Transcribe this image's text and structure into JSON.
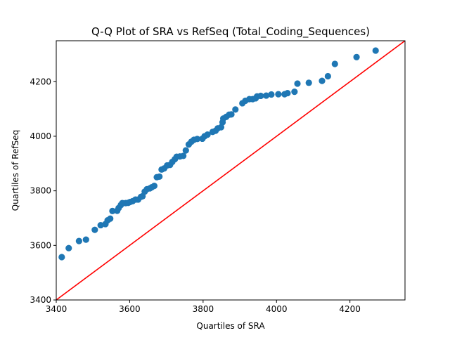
{
  "chart_data": {
    "type": "scatter",
    "title": "Q-Q Plot of SRA vs RefSeq (Total_Coding_Sequences)",
    "xlabel": "Quartiles of SRA",
    "ylabel": "Quartiles of RefSeq",
    "xlim": [
      3400,
      4350
    ],
    "ylim": [
      3400,
      4350
    ],
    "xticks": [
      3400,
      3600,
      3800,
      4000,
      4200
    ],
    "yticks": [
      3400,
      3600,
      3800,
      4000,
      4200
    ],
    "grid": false,
    "legend": "none",
    "series": [
      {
        "color": "#1f77b4",
        "points": [
          [
            3415,
            3557
          ],
          [
            3434,
            3590
          ],
          [
            3462,
            3616
          ],
          [
            3481,
            3621
          ],
          [
            3505,
            3657
          ],
          [
            3521,
            3674
          ],
          [
            3534,
            3678
          ],
          [
            3540,
            3692
          ],
          [
            3547,
            3698
          ],
          [
            3553,
            3726
          ],
          [
            3566,
            3727
          ],
          [
            3570,
            3737
          ],
          [
            3576,
            3748
          ],
          [
            3580,
            3755
          ],
          [
            3589,
            3755
          ],
          [
            3596,
            3756
          ],
          [
            3601,
            3759
          ],
          [
            3608,
            3762
          ],
          [
            3616,
            3768
          ],
          [
            3623,
            3768
          ],
          [
            3631,
            3778
          ],
          [
            3635,
            3780
          ],
          [
            3641,
            3797
          ],
          [
            3647,
            3806
          ],
          [
            3655,
            3809
          ],
          [
            3660,
            3813
          ],
          [
            3667,
            3818
          ],
          [
            3674,
            3850
          ],
          [
            3681,
            3852
          ],
          [
            3687,
            3878
          ],
          [
            3694,
            3882
          ],
          [
            3702,
            3893
          ],
          [
            3710,
            3895
          ],
          [
            3716,
            3906
          ],
          [
            3723,
            3916
          ],
          [
            3728,
            3925
          ],
          [
            3737,
            3926
          ],
          [
            3746,
            3928
          ],
          [
            3753,
            3948
          ],
          [
            3761,
            3970
          ],
          [
            3768,
            3980
          ],
          [
            3775,
            3987
          ],
          [
            3784,
            3990
          ],
          [
            3798,
            3991
          ],
          [
            3804,
            4000
          ],
          [
            3812,
            4006
          ],
          [
            3826,
            4016
          ],
          [
            3834,
            4020
          ],
          [
            3840,
            4029
          ],
          [
            3849,
            4033
          ],
          [
            3853,
            4051
          ],
          [
            3855,
            4065
          ],
          [
            3863,
            4071
          ],
          [
            3871,
            4079
          ],
          [
            3877,
            4080
          ],
          [
            3888,
            4098
          ],
          [
            3907,
            4121
          ],
          [
            3915,
            4130
          ],
          [
            3926,
            4136
          ],
          [
            3935,
            4136
          ],
          [
            3943,
            4139
          ],
          [
            3947,
            4146
          ],
          [
            3957,
            4148
          ],
          [
            3972,
            4149
          ],
          [
            3986,
            4153
          ],
          [
            4005,
            4154
          ],
          [
            4022,
            4154
          ],
          [
            4030,
            4158
          ],
          [
            4049,
            4163
          ],
          [
            4057,
            4193
          ],
          [
            4088,
            4196
          ],
          [
            4124,
            4203
          ],
          [
            4140,
            4220
          ],
          [
            4159,
            4265
          ],
          [
            4218,
            4290
          ],
          [
            4270,
            4314
          ]
        ]
      }
    ],
    "reference_line": {
      "color": "#ff0000",
      "slope": 1,
      "intercept": 0
    }
  }
}
